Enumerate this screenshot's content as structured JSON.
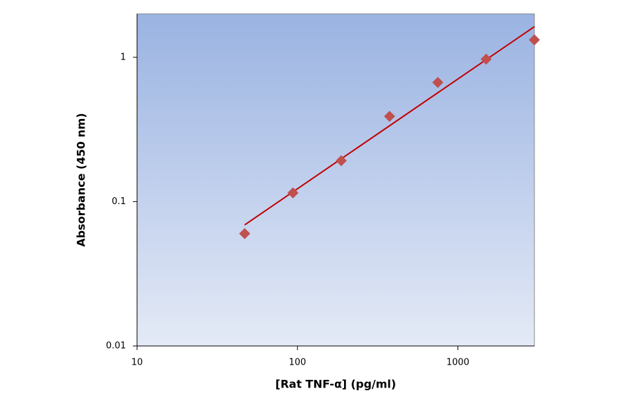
{
  "chart_data": {
    "type": "scatter",
    "x_label": "[Rat TNF-α] (pg/ml)",
    "y_label": "Absorbance (450 nm)",
    "x": [
      46.875,
      93.75,
      187.5,
      375,
      750,
      1500,
      3000
    ],
    "values": [
      0.06,
      0.115,
      0.192,
      0.39,
      0.67,
      0.97,
      1.32
    ],
    "color": "#c0504d",
    "fit_line": {
      "x": [
        46.875,
        3000
      ],
      "values": [
        0.069,
        1.63
      ],
      "color": "#c00000"
    },
    "x_log": true,
    "y_log": true,
    "xlim": [
      10,
      3000
    ],
    "ylim": [
      0.01,
      2
    ],
    "xticks": [
      10,
      100,
      1000
    ],
    "yticks": [
      0.01,
      0.1,
      1
    ]
  }
}
